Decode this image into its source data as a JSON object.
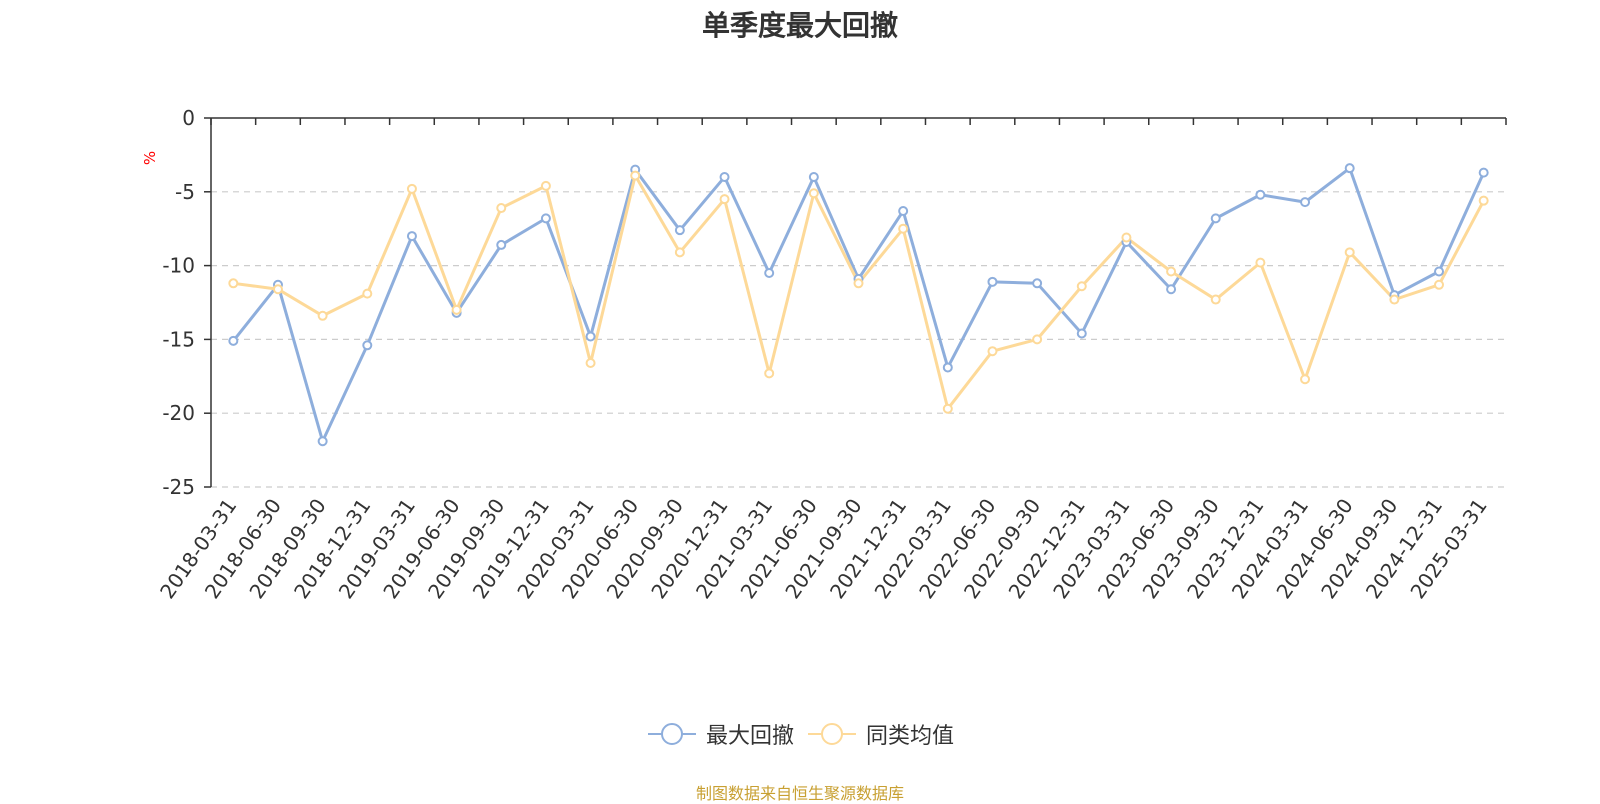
{
  "chart_data": {
    "type": "line",
    "title": "单季度最大回撤",
    "ylabel": "%",
    "ylim": [
      -25,
      0
    ],
    "yticks": [
      0,
      -5,
      -10,
      -15,
      -20,
      -25
    ],
    "grid": true,
    "legend_position": "bottom-center",
    "categories": [
      "2018-03-31",
      "2018-06-30",
      "2018-09-30",
      "2018-12-31",
      "2019-03-31",
      "2019-06-30",
      "2019-09-30",
      "2019-12-31",
      "2020-03-31",
      "2020-06-30",
      "2020-09-30",
      "2020-12-31",
      "2021-03-31",
      "2021-06-30",
      "2021-09-30",
      "2021-12-31",
      "2022-03-31",
      "2022-06-30",
      "2022-09-30",
      "2022-12-31",
      "2023-03-31",
      "2023-06-30",
      "2023-09-30",
      "2023-12-31",
      "2024-03-31",
      "2024-06-30",
      "2024-09-30",
      "2024-12-31",
      "2025-03-31"
    ],
    "series": [
      {
        "name": "最大回撤",
        "color": "#8eaedc",
        "values": [
          -15.1,
          -11.3,
          -21.9,
          -15.4,
          -8.0,
          -13.2,
          -8.6,
          -6.8,
          -14.8,
          -3.5,
          -7.6,
          -4.0,
          -10.5,
          -4.0,
          -10.9,
          -6.3,
          -16.9,
          -11.1,
          -11.2,
          -14.6,
          -8.4,
          -11.6,
          -6.8,
          -5.2,
          -5.7,
          -3.4,
          -12.0,
          -10.4,
          -3.7
        ]
      },
      {
        "name": "同类均值",
        "color": "#fdd998",
        "values": [
          -11.2,
          -11.6,
          -13.4,
          -11.9,
          -4.8,
          -13.0,
          -6.1,
          -4.6,
          -16.6,
          -3.9,
          -9.1,
          -5.5,
          -17.3,
          -5.1,
          -11.2,
          -7.5,
          -19.7,
          -15.8,
          -15.0,
          -11.4,
          -8.1,
          -10.4,
          -12.3,
          -9.8,
          -17.7,
          -9.1,
          -12.3,
          -11.3,
          -5.6
        ]
      }
    ]
  },
  "footer": {
    "source": "制图数据来自恒生聚源数据库"
  },
  "colors": {
    "ylabel": "#ff0000",
    "grid": "#cccccc",
    "axis": "#333333"
  }
}
